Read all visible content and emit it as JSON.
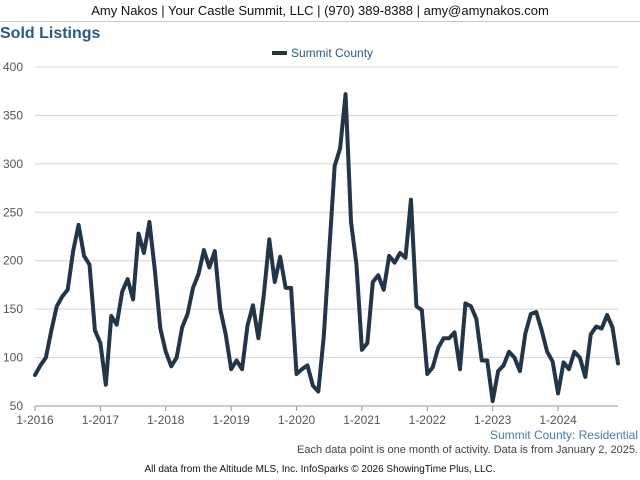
{
  "header": {
    "contact": "Amy Nakos | Your Castle Summit, LLC | (970) 389-8388 | amy@amynakos.com"
  },
  "chart_title": "Sold Listings",
  "caption": "Summit County: Residential",
  "note": "Each data point is one month of activity. Data is from January 2, 2025.",
  "footer": "All data from the Altitude MLS, Inc. InfoSparks © 2026 ShowingTime Plus, LLC.",
  "chart_data": {
    "type": "line",
    "title": "Sold Listings",
    "xlabel": "",
    "ylabel": "",
    "ylim": [
      50,
      400
    ],
    "yticks": [
      50,
      100,
      150,
      200,
      250,
      300,
      350,
      400
    ],
    "x_ticks": [
      "1-2016",
      "1-2017",
      "1-2018",
      "1-2019",
      "1-2020",
      "1-2021",
      "1-2022",
      "1-2023",
      "1-2024"
    ],
    "x_start": "2016-01",
    "grid": "horizontal",
    "legend": "top-center",
    "color": "#233548",
    "series": [
      {
        "name": "Summit County",
        "values": [
          82,
          92,
          100,
          128,
          153,
          163,
          170,
          210,
          237,
          205,
          196,
          128,
          115,
          72,
          143,
          134,
          168,
          181,
          160,
          228,
          208,
          240,
          190,
          130,
          106,
          91,
          100,
          131,
          145,
          172,
          186,
          211,
          193,
          210,
          150,
          124,
          88,
          97,
          88,
          133,
          154,
          120,
          165,
          222,
          178,
          204,
          172,
          172,
          83,
          88,
          92,
          71,
          65,
          122,
          210,
          298,
          316,
          372,
          240,
          196,
          108,
          115,
          178,
          185,
          170,
          205,
          198,
          208,
          203,
          263,
          153,
          149,
          83,
          90,
          110,
          120,
          120,
          126,
          88,
          156,
          153,
          140,
          97,
          97,
          55,
          86,
          92,
          106,
          100,
          86,
          125,
          145,
          147,
          128,
          106,
          96,
          63,
          95,
          88,
          106,
          100,
          80,
          124,
          132,
          130,
          144,
          131,
          94
        ]
      }
    ]
  }
}
